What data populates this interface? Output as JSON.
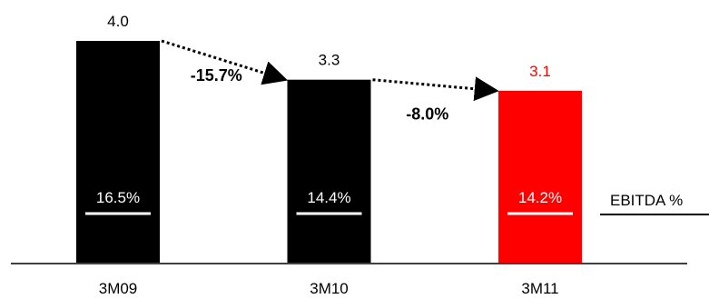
{
  "chart_data": {
    "type": "bar",
    "categories": [
      "3M09",
      "3M10",
      "3M11"
    ],
    "values": [
      4.0,
      3.3,
      3.1
    ],
    "value_labels": [
      "4.0",
      "3.3",
      "3.1"
    ],
    "bar_colors": [
      "#000000",
      "#000000",
      "#ff0000"
    ],
    "label_colors": [
      "#000000",
      "#000000",
      "#ff0000"
    ],
    "ebitda_margin_labels": [
      "16.5%",
      "14.4%",
      "14.2%"
    ],
    "ebitda_margin_label": "EBITDA %",
    "changes": [
      {
        "from": "3M09",
        "to": "3M10",
        "label": "-15.7%"
      },
      {
        "from": "3M10",
        "to": "3M11",
        "label": "-8.0%"
      }
    ],
    "ylim": [
      0,
      4.0
    ],
    "grid": false,
    "legend": "none"
  }
}
